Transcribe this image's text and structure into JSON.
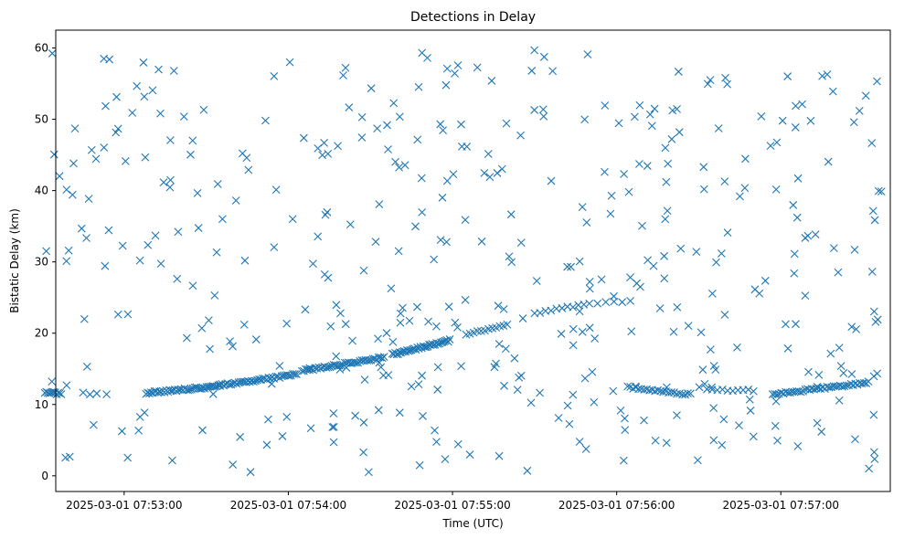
{
  "chart_data": {
    "type": "scatter",
    "title": "Detections in Delay",
    "xlabel": "Time (UTC)",
    "ylabel": "Bistatic Delay (km)",
    "x_start": "2025-03-01 07:52:30",
    "x_end": "2025-03-01 07:57:37",
    "xlim": [
      "2025-03-01 07:52:35",
      "2025-03-01 07:57:40"
    ],
    "ylim": [
      -2.2,
      62.5
    ],
    "xticks": [
      "2025-03-01 07:53:00",
      "2025-03-01 07:54:00",
      "2025-03-01 07:55:00",
      "2025-03-01 07:56:00",
      "2025-03-01 07:57:00"
    ],
    "yticks": [
      0,
      10,
      20,
      30,
      40,
      50,
      60
    ],
    "marker": "x",
    "color": "#1f77b4",
    "grid": false,
    "series": [
      {
        "name": "",
        "track_segments": [
          {
            "t0": "2025-03-01 07:52:31",
            "t1": "2025-03-01 07:52:37",
            "y0": 11.7,
            "y1": 11.5,
            "n": 12
          },
          {
            "t0": "2025-03-01 07:52:45",
            "t1": "2025-03-01 07:52:50",
            "y0": 11.6,
            "y1": 11.4,
            "n": 3
          },
          {
            "t0": "2025-03-01 07:53:08",
            "t1": "2025-03-01 07:53:35",
            "y0": 11.6,
            "y1": 12.6,
            "n": 45
          },
          {
            "t0": "2025-03-01 07:53:35",
            "t1": "2025-03-01 07:54:03",
            "y0": 12.7,
            "y1": 14.2,
            "n": 42
          },
          {
            "t0": "2025-03-01 07:54:05",
            "t1": "2025-03-01 07:54:35",
            "y0": 14.7,
            "y1": 16.6,
            "n": 45
          },
          {
            "t0": "2025-03-01 07:54:38",
            "t1": "2025-03-01 07:54:59",
            "y0": 17.0,
            "y1": 19.0,
            "n": 40
          },
          {
            "t0": "2025-03-01 07:55:05",
            "t1": "2025-03-01 07:55:20",
            "y0": 19.7,
            "y1": 21.3,
            "n": 12
          },
          {
            "t0": "2025-03-01 07:55:30",
            "t1": "2025-03-01 07:55:48",
            "y0": 22.8,
            "y1": 24.0,
            "n": 10
          },
          {
            "t0": "2025-03-01 07:55:50",
            "t1": "2025-03-01 07:56:05",
            "y0": 24.1,
            "y1": 24.4,
            "n": 6
          },
          {
            "t0": "2025-03-01 07:56:04",
            "t1": "2025-03-01 07:56:27",
            "y0": 12.4,
            "y1": 11.4,
            "n": 24
          },
          {
            "t0": "2025-03-01 07:56:33",
            "t1": "2025-03-01 07:56:50",
            "y0": 12.1,
            "y1": 12.0,
            "n": 10
          },
          {
            "t0": "2025-03-01 07:56:57",
            "t1": "2025-03-01 07:57:32",
            "y0": 11.4,
            "y1": 13.1,
            "n": 45
          }
        ],
        "clutter_count": 430,
        "clutter_y_range": [
          0.5,
          59.8
        ]
      }
    ]
  }
}
